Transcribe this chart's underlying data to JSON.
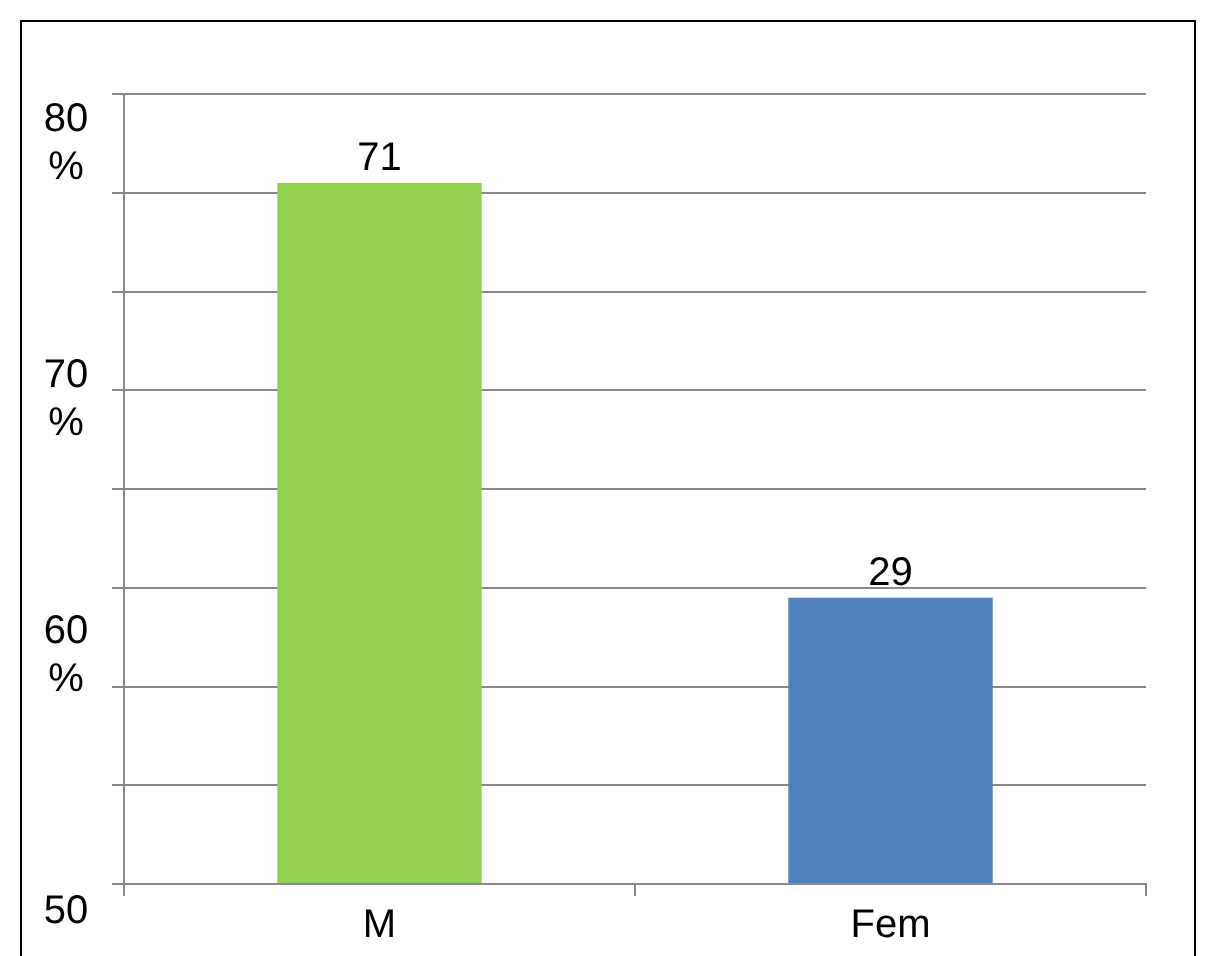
{
  "chart_data": {
    "type": "bar",
    "categories": [
      "M",
      "Fem"
    ],
    "values": [
      71,
      29
    ],
    "colors": [
      "#92d050",
      "#4f81bd"
    ],
    "ylim": [
      0,
      80
    ],
    "yticks": [
      {
        "value": 0,
        "label": null
      },
      {
        "value": 10,
        "label": null
      },
      {
        "value": 20,
        "label": null
      },
      {
        "value": 30,
        "label": null
      },
      {
        "value": 40,
        "label": null
      },
      {
        "value": 50,
        "label": null
      },
      {
        "value": 60,
        "label": null
      },
      {
        "value": 70,
        "label": null
      },
      {
        "value": 80,
        "label": null
      }
    ],
    "grid": "y",
    "legend": false,
    "data_labels": true,
    "annotations": [
      "80 %",
      "70 %",
      "60 %",
      "50"
    ]
  }
}
